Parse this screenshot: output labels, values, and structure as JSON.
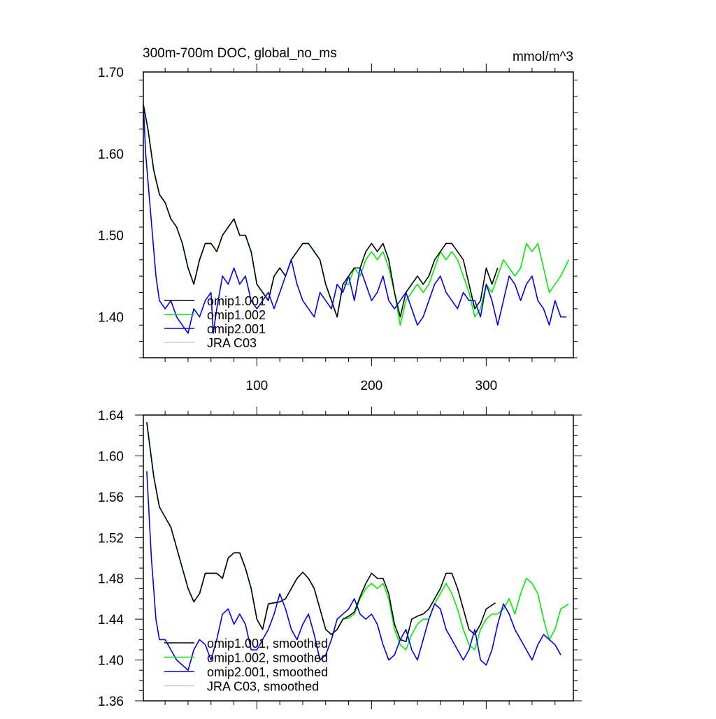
{
  "chart_data": [
    {
      "type": "line",
      "title": "300m-700m DOC, global_no_ms",
      "units": "mmol/m^3",
      "xlim": [
        1,
        376
      ],
      "ylim": [
        1.35,
        1.7
      ],
      "xticks": [
        100,
        200,
        300
      ],
      "xtick_labels": [
        "100",
        "200",
        "300"
      ],
      "yticks": [
        1.4,
        1.5,
        1.6,
        1.7
      ],
      "ytick_labels": [
        "1.40",
        "1.50",
        "1.60",
        "1.70"
      ],
      "legend": [
        "omip1.001",
        "omip1.002",
        "omip2.001",
        "JRA C03"
      ],
      "legend_placement": "bottom-left",
      "series": [
        {
          "name": "omip1.002",
          "color": "#00ee00",
          "x": [
            1,
            5,
            10,
            15,
            20,
            25,
            30,
            35,
            40,
            45,
            50,
            55,
            60,
            65,
            70,
            75,
            80,
            85,
            90,
            95,
            100,
            105,
            110,
            115,
            120,
            125,
            130,
            135,
            140,
            145,
            150,
            155,
            160,
            165,
            170,
            175,
            180,
            185,
            190,
            195,
            200,
            205,
            210,
            215,
            220,
            225,
            230,
            235,
            240,
            245,
            250,
            255,
            260,
            265,
            270,
            275,
            280,
            285,
            290,
            295,
            300,
            305,
            310,
            315,
            320,
            325,
            330,
            335,
            340,
            345,
            350,
            355,
            360,
            365,
            372
          ],
          "y": [
            1.66,
            1.63,
            1.58,
            1.55,
            1.54,
            1.52,
            1.51,
            1.49,
            1.46,
            1.44,
            1.47,
            1.49,
            1.49,
            1.48,
            1.5,
            1.51,
            1.52,
            1.5,
            1.5,
            1.48,
            1.44,
            1.43,
            1.42,
            1.45,
            1.46,
            1.45,
            1.47,
            1.48,
            1.49,
            1.49,
            1.48,
            1.47,
            1.44,
            1.42,
            1.4,
            1.44,
            1.44,
            1.46,
            1.45,
            1.47,
            1.48,
            1.47,
            1.48,
            1.46,
            1.43,
            1.39,
            1.42,
            1.43,
            1.44,
            1.43,
            1.44,
            1.46,
            1.48,
            1.47,
            1.48,
            1.47,
            1.45,
            1.43,
            1.4,
            1.41,
            1.44,
            1.43,
            1.45,
            1.47,
            1.46,
            1.45,
            1.46,
            1.49,
            1.48,
            1.49,
            1.46,
            1.43,
            1.44,
            1.45,
            1.47
          ]
        },
        {
          "name": "omip1.001",
          "color": "#000000",
          "x": [
            1,
            5,
            10,
            15,
            20,
            25,
            30,
            35,
            40,
            45,
            50,
            55,
            60,
            65,
            70,
            75,
            80,
            85,
            90,
            95,
            100,
            105,
            110,
            115,
            120,
            125,
            130,
            135,
            140,
            145,
            150,
            155,
            160,
            165,
            170,
            175,
            180,
            185,
            190,
            195,
            200,
            205,
            210,
            215,
            220,
            225,
            230,
            235,
            240,
            245,
            250,
            255,
            260,
            265,
            270,
            275,
            280,
            285,
            290,
            295,
            300,
            305,
            310
          ],
          "y": [
            1.66,
            1.63,
            1.58,
            1.55,
            1.54,
            1.52,
            1.51,
            1.49,
            1.46,
            1.44,
            1.47,
            1.49,
            1.49,
            1.48,
            1.5,
            1.51,
            1.52,
            1.5,
            1.5,
            1.48,
            1.44,
            1.43,
            1.42,
            1.45,
            1.46,
            1.45,
            1.47,
            1.48,
            1.49,
            1.49,
            1.48,
            1.47,
            1.44,
            1.42,
            1.4,
            1.44,
            1.45,
            1.46,
            1.46,
            1.48,
            1.49,
            1.48,
            1.49,
            1.47,
            1.43,
            1.4,
            1.43,
            1.44,
            1.45,
            1.44,
            1.45,
            1.47,
            1.48,
            1.49,
            1.49,
            1.48,
            1.47,
            1.44,
            1.41,
            1.42,
            1.46,
            1.44,
            1.46
          ]
        },
        {
          "name": "omip2.001",
          "color": "#0000ee",
          "x": [
            1,
            3,
            6,
            9,
            12,
            15,
            20,
            25,
            30,
            35,
            40,
            45,
            50,
            55,
            60,
            62,
            65,
            70,
            75,
            80,
            85,
            90,
            95,
            100,
            105,
            110,
            115,
            120,
            125,
            130,
            135,
            140,
            145,
            150,
            155,
            160,
            165,
            170,
            175,
            180,
            185,
            190,
            195,
            200,
            205,
            210,
            215,
            220,
            225,
            230,
            235,
            240,
            245,
            250,
            255,
            260,
            265,
            270,
            275,
            280,
            285,
            290,
            295,
            300,
            305,
            310,
            315,
            320,
            325,
            330,
            335,
            340,
            345,
            350,
            355,
            360,
            365,
            370
          ],
          "y": [
            1.66,
            1.6,
            1.55,
            1.5,
            1.45,
            1.42,
            1.41,
            1.42,
            1.4,
            1.39,
            1.38,
            1.41,
            1.4,
            1.42,
            1.43,
            1.38,
            1.41,
            1.45,
            1.44,
            1.46,
            1.44,
            1.45,
            1.42,
            1.41,
            1.42,
            1.43,
            1.41,
            1.43,
            1.45,
            1.47,
            1.44,
            1.42,
            1.41,
            1.4,
            1.43,
            1.42,
            1.41,
            1.44,
            1.43,
            1.45,
            1.42,
            1.46,
            1.44,
            1.42,
            1.43,
            1.45,
            1.42,
            1.41,
            1.42,
            1.43,
            1.41,
            1.39,
            1.4,
            1.42,
            1.44,
            1.45,
            1.43,
            1.42,
            1.41,
            1.43,
            1.42,
            1.42,
            1.4,
            1.44,
            1.42,
            1.39,
            1.42,
            1.45,
            1.44,
            1.42,
            1.44,
            1.45,
            1.42,
            1.41,
            1.39,
            1.42,
            1.4,
            1.4
          ]
        }
      ]
    },
    {
      "type": "line",
      "xlim": [
        1,
        376
      ],
      "ylim": [
        1.36,
        1.64
      ],
      "xticks": [
        100,
        200,
        300
      ],
      "yticks": [
        1.36,
        1.4,
        1.44,
        1.48,
        1.52,
        1.56,
        1.6,
        1.64
      ],
      "ytick_labels": [
        "1.36",
        "1.40",
        "1.44",
        "1.48",
        "1.52",
        "1.56",
        "1.60",
        "1.64"
      ],
      "legend": [
        "omip1.001, smoothed",
        "omip1.002, smoothed",
        "omip2.001, smoothed",
        "JRA C03, smoothed"
      ],
      "legend_placement": "bottom-left",
      "series": [
        {
          "name": "omip1.002, smoothed",
          "color": "#00ee00",
          "x": [
            4,
            10,
            15,
            20,
            25,
            30,
            35,
            40,
            45,
            50,
            55,
            65,
            70,
            75,
            80,
            85,
            90,
            95,
            100,
            105,
            110,
            120,
            125,
            130,
            135,
            140,
            145,
            150,
            155,
            160,
            165,
            170,
            175,
            180,
            185,
            190,
            195,
            200,
            205,
            210,
            215,
            220,
            225,
            230,
            235,
            240,
            245,
            250,
            255,
            260,
            265,
            270,
            275,
            280,
            285,
            290,
            295,
            300,
            305,
            310,
            315,
            320,
            325,
            330,
            335,
            340,
            345,
            350,
            355,
            360,
            365,
            372
          ],
          "y": [
            1.633,
            1.58,
            1.55,
            1.54,
            1.53,
            1.51,
            1.49,
            1.47,
            1.457,
            1.465,
            1.485,
            1.485,
            1.48,
            1.5,
            1.505,
            1.505,
            1.49,
            1.47,
            1.44,
            1.43,
            1.455,
            1.457,
            1.46,
            1.47,
            1.48,
            1.486,
            1.48,
            1.47,
            1.45,
            1.43,
            1.425,
            1.43,
            1.44,
            1.441,
            1.445,
            1.46,
            1.47,
            1.475,
            1.47,
            1.475,
            1.46,
            1.43,
            1.415,
            1.41,
            1.425,
            1.435,
            1.44,
            1.44,
            1.455,
            1.465,
            1.475,
            1.465,
            1.45,
            1.43,
            1.415,
            1.41,
            1.43,
            1.44,
            1.445,
            1.445,
            1.45,
            1.46,
            1.445,
            1.465,
            1.48,
            1.475,
            1.465,
            1.44,
            1.42,
            1.43,
            1.45,
            1.455
          ]
        },
        {
          "name": "omip1.001, smoothed",
          "color": "#000000",
          "x": [
            4,
            10,
            15,
            20,
            25,
            30,
            35,
            40,
            45,
            50,
            55,
            65,
            70,
            75,
            80,
            85,
            90,
            95,
            100,
            105,
            110,
            120,
            125,
            130,
            135,
            140,
            145,
            150,
            155,
            160,
            165,
            170,
            175,
            180,
            185,
            190,
            195,
            200,
            205,
            210,
            215,
            220,
            225,
            230,
            235,
            240,
            245,
            250,
            255,
            260,
            265,
            270,
            275,
            280,
            285,
            290,
            295,
            300,
            308
          ],
          "y": [
            1.633,
            1.58,
            1.55,
            1.54,
            1.53,
            1.51,
            1.49,
            1.47,
            1.457,
            1.465,
            1.485,
            1.485,
            1.48,
            1.5,
            1.505,
            1.505,
            1.49,
            1.47,
            1.44,
            1.43,
            1.455,
            1.457,
            1.46,
            1.47,
            1.48,
            1.486,
            1.48,
            1.47,
            1.45,
            1.43,
            1.425,
            1.43,
            1.44,
            1.443,
            1.447,
            1.462,
            1.475,
            1.485,
            1.48,
            1.48,
            1.465,
            1.435,
            1.42,
            1.418,
            1.44,
            1.443,
            1.445,
            1.45,
            1.46,
            1.47,
            1.485,
            1.485,
            1.47,
            1.45,
            1.43,
            1.425,
            1.435,
            1.45,
            1.456
          ]
        },
        {
          "name": "omip2.001, smoothed",
          "color": "#0000ee",
          "x": [
            4,
            8,
            12,
            15,
            20,
            25,
            30,
            35,
            40,
            45,
            50,
            55,
            60,
            65,
            70,
            75,
            80,
            85,
            90,
            95,
            100,
            105,
            110,
            115,
            120,
            125,
            130,
            135,
            140,
            145,
            150,
            155,
            160,
            165,
            170,
            175,
            180,
            185,
            190,
            195,
            200,
            205,
            210,
            215,
            220,
            225,
            230,
            235,
            240,
            245,
            250,
            255,
            260,
            265,
            270,
            275,
            280,
            285,
            290,
            295,
            300,
            305,
            310,
            315,
            320,
            325,
            330,
            335,
            340,
            345,
            350,
            355,
            360,
            365
          ],
          "y": [
            1.585,
            1.5,
            1.44,
            1.42,
            1.42,
            1.41,
            1.4,
            1.395,
            1.39,
            1.41,
            1.42,
            1.415,
            1.4,
            1.42,
            1.445,
            1.45,
            1.435,
            1.445,
            1.435,
            1.41,
            1.41,
            1.42,
            1.43,
            1.445,
            1.465,
            1.45,
            1.43,
            1.42,
            1.435,
            1.445,
            1.425,
            1.4,
            1.405,
            1.42,
            1.44,
            1.445,
            1.45,
            1.46,
            1.445,
            1.44,
            1.445,
            1.435,
            1.415,
            1.4,
            1.405,
            1.42,
            1.43,
            1.41,
            1.4,
            1.42,
            1.44,
            1.455,
            1.45,
            1.43,
            1.42,
            1.41,
            1.4,
            1.41,
            1.43,
            1.4,
            1.395,
            1.41,
            1.435,
            1.455,
            1.445,
            1.43,
            1.42,
            1.41,
            1.4,
            1.415,
            1.425,
            1.42,
            1.415,
            1.405
          ]
        }
      ]
    }
  ]
}
